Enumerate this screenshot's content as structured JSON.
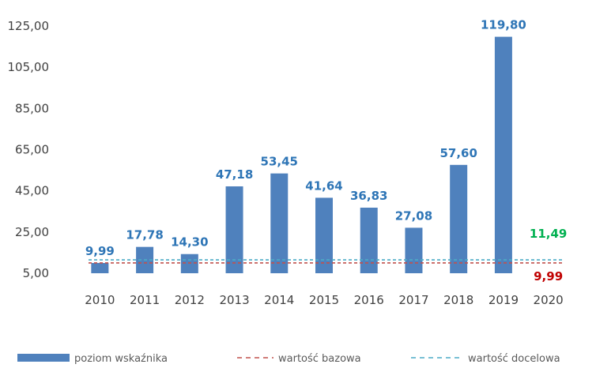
{
  "chart_data": {
    "type": "bar",
    "categories": [
      "2010",
      "2011",
      "2012",
      "2013",
      "2014",
      "2015",
      "2016",
      "2017",
      "2018",
      "2019",
      "2020"
    ],
    "series": [
      {
        "name": "poziom wskaźnika",
        "color": "#4F81BD",
        "values": [
          9.99,
          17.78,
          14.3,
          47.18,
          53.45,
          41.64,
          36.83,
          27.08,
          57.6,
          119.8,
          null
        ],
        "labels": [
          "9,99",
          "17,78",
          "14,30",
          "47,18",
          "53,45",
          "41,64",
          "36,83",
          "27,08",
          "57,60",
          "119,80",
          ""
        ],
        "label_color": "#2E75B6"
      }
    ],
    "lines": [
      {
        "name": "wartość bazowa",
        "value": 9.99,
        "label": "9,99",
        "color": "#C0504D",
        "label_color": "#C00000",
        "style": "dashed"
      },
      {
        "name": "wartość docelowa",
        "value": 11.49,
        "label": "11,49",
        "color": "#4BACC6",
        "label_color": "#00B050",
        "style": "dashed"
      }
    ],
    "yticks": [
      "5,00",
      "25,00",
      "45,00",
      "65,00",
      "85,00",
      "105,00",
      "125,00"
    ],
    "ylim": [
      5,
      125
    ],
    "grid": false,
    "legend": "bottom",
    "title": "",
    "xlabel": "",
    "ylabel": ""
  }
}
